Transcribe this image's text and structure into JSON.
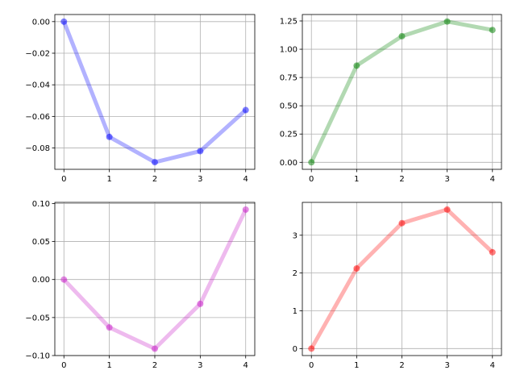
{
  "chart_data": [
    {
      "type": "line",
      "x": [
        0,
        1,
        2,
        3,
        4
      ],
      "series": [
        {
          "values": [
            0.0,
            -0.073,
            -0.089,
            -0.082,
            -0.056
          ],
          "color": "#0000ff"
        }
      ],
      "xlim": [
        -0.2,
        4.2
      ],
      "ylim": [
        -0.0935,
        0.0045
      ],
      "xticks": [
        0,
        1,
        2,
        3,
        4
      ],
      "yticks": [
        0.0,
        -0.02,
        -0.04,
        -0.06,
        -0.08
      ],
      "ytick_labels": [
        "0.00",
        "−0.02",
        "−0.04",
        "−0.06",
        "−0.08"
      ],
      "grid": true
    },
    {
      "type": "line",
      "x": [
        0,
        1,
        2,
        3,
        4
      ],
      "series": [
        {
          "values": [
            0.0,
            0.855,
            1.115,
            1.245,
            1.17
          ],
          "color": "#008000"
        }
      ],
      "xlim": [
        -0.2,
        4.2
      ],
      "ylim": [
        -0.062,
        1.307
      ],
      "xticks": [
        0,
        1,
        2,
        3,
        4
      ],
      "yticks": [
        0.0,
        0.25,
        0.5,
        0.75,
        1.0,
        1.25
      ],
      "ytick_labels": [
        "0.00",
        "0.25",
        "0.50",
        "0.75",
        "1.00",
        "1.25"
      ],
      "grid": true
    },
    {
      "type": "line",
      "x": [
        0,
        1,
        2,
        3,
        4
      ],
      "series": [
        {
          "values": [
            0.0,
            -0.063,
            -0.091,
            -0.032,
            0.092
          ],
          "color": "#c71ac7"
        }
      ],
      "xlim": [
        -0.2,
        4.2
      ],
      "ylim": [
        -0.1,
        0.1015
      ],
      "xticks": [
        0,
        1,
        2,
        3,
        4
      ],
      "yticks": [
        0.1,
        0.05,
        0.0,
        -0.05,
        -0.1
      ],
      "ytick_labels": [
        "0.10",
        "0.05",
        "0.00",
        "−0.05",
        "−0.10"
      ],
      "grid": true
    },
    {
      "type": "line",
      "x": [
        0,
        1,
        2,
        3,
        4
      ],
      "series": [
        {
          "values": [
            0.0,
            2.12,
            3.32,
            3.68,
            2.55
          ],
          "color": "#ff0000"
        }
      ],
      "xlim": [
        -0.2,
        4.2
      ],
      "ylim": [
        -0.185,
        3.87
      ],
      "xticks": [
        0,
        1,
        2,
        3,
        4
      ],
      "yticks": [
        0,
        1,
        2,
        3
      ],
      "ytick_labels": [
        "0",
        "1",
        "2",
        "3"
      ],
      "grid": true
    }
  ]
}
